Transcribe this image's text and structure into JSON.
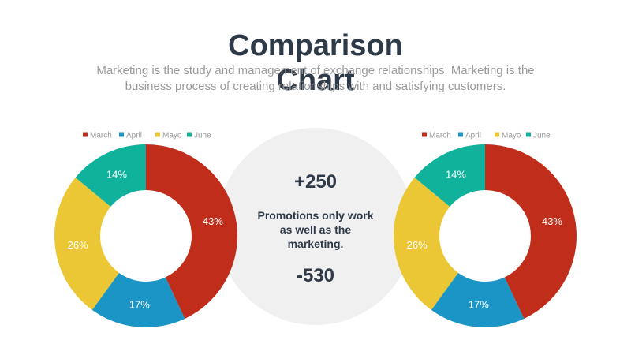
{
  "title": [
    "Comparison",
    "Chart"
  ],
  "subtitle": "Marketing is the study and management of exchange relationships. Marketing is the business process of creating relationships with and satisfying customers.",
  "center": {
    "top_value": "+250",
    "text": "Promotions only work as well as the marketing.",
    "bottom_value": "-530"
  },
  "chart_data": [
    {
      "type": "pie",
      "donut": true,
      "categories": [
        "March",
        "April",
        "Mayo",
        "June"
      ],
      "values": [
        43,
        17,
        26,
        14
      ],
      "labels": [
        "43%",
        "17%",
        "26%",
        "14%"
      ],
      "colors": [
        "#c02e1b",
        "#1a95c5",
        "#ebc736",
        "#10b29c"
      ],
      "legend": "top"
    },
    {
      "type": "pie",
      "donut": true,
      "categories": [
        "March",
        "April",
        "Mayo",
        "June"
      ],
      "values": [
        43,
        17,
        26,
        14
      ],
      "labels": [
        "43%",
        "17%",
        "26%",
        "14%"
      ],
      "colors": [
        "#c02e1b",
        "#1a95c5",
        "#ebc736",
        "#10b29c"
      ],
      "legend": "top"
    }
  ]
}
